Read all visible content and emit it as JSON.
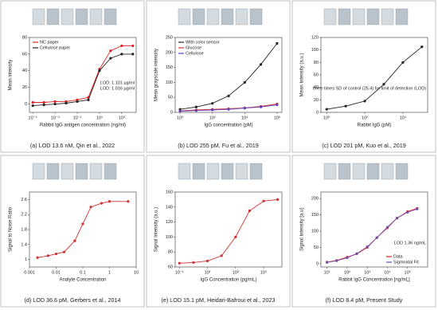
{
  "chart_data": [
    {
      "type": "line",
      "caption": "(a) LOD 13.6 nM, Qin et al., 2022",
      "xlabel": "Rabbit IgG antigen concentration (ng/ml)",
      "ylabel": "Mean intensity",
      "log_x": true,
      "xlim": [
        5e-06,
        20000
      ],
      "ylim": [
        -10,
        80
      ],
      "xticks": [
        {
          "value": 1e-05,
          "label": "10⁻⁵"
        },
        {
          "value": 0.001,
          "label": "10⁻³"
        },
        {
          "value": 0.1,
          "label": "10⁻¹"
        },
        {
          "value": 10,
          "label": "10¹"
        },
        {
          "value": 1000,
          "label": "10³"
        }
      ],
      "yticks": [
        0,
        20,
        40,
        60,
        80
      ],
      "legend": "upper left",
      "x": [
        1e-05,
        0.0001,
        0.001,
        0.01,
        0.1,
        1,
        10,
        100,
        1000,
        10000
      ],
      "series": [
        {
          "name": "NC paper",
          "color": "#e02020",
          "values": [
            2,
            2,
            3,
            3,
            5,
            8,
            42,
            64,
            70,
            70
          ]
        },
        {
          "name": "Cellulose paper",
          "color": "#222222",
          "values": [
            -2,
            -1,
            0,
            1,
            3,
            5,
            40,
            55,
            60,
            60
          ]
        }
      ],
      "annotations": [
        "LOD: 1.016 μg/ml",
        "LOD: 1.101 μg/ml"
      ]
    },
    {
      "type": "line",
      "caption": "(b) LOD 255 pM, Fu et al., 2019",
      "xlabel": "IgG concentration (pM)",
      "ylabel": "Mean grayscale intensity",
      "log_x": true,
      "xlim": [
        0.5,
        2000000
      ],
      "ylim": [
        0,
        250
      ],
      "xticks": [
        {
          "value": 1,
          "label": "10⁰"
        },
        {
          "value": 100,
          "label": "10²"
        },
        {
          "value": 10000,
          "label": "10⁴"
        },
        {
          "value": 1000000,
          "label": "10⁶"
        }
      ],
      "yticks": [
        0,
        50,
        100,
        150,
        200,
        250
      ],
      "legend": "upper left",
      "x": [
        1,
        10,
        100,
        1000,
        10000,
        100000,
        1000000
      ],
      "series": [
        {
          "name": "With color sensor",
          "color": "#222222",
          "values": [
            10,
            18,
            30,
            55,
            100,
            160,
            230
          ]
        },
        {
          "name": "Glucose",
          "color": "#d03030",
          "values": [
            5,
            8,
            10,
            12,
            15,
            20,
            28
          ]
        },
        {
          "name": "Cellulose",
          "color": "#6040c0",
          "values": [
            4,
            6,
            8,
            10,
            14,
            18,
            25
          ]
        }
      ],
      "annotations": []
    },
    {
      "type": "line",
      "caption": "(c) LOD 201 pM, Kuo et al., 2019",
      "xlabel": "Rabbit IgG (pM)",
      "ylabel": "Mean Intensity (a.u.)",
      "log_x": true,
      "xlim": [
        0.5,
        200000
      ],
      "ylim": [
        0,
        120
      ],
      "xticks": [
        {
          "value": 1,
          "label": "10⁰"
        },
        {
          "value": 100,
          "label": "10²"
        },
        {
          "value": 10000,
          "label": "10⁴"
        }
      ],
      "yticks": [
        0,
        20,
        40,
        60,
        80,
        100,
        120
      ],
      "legend": "upper left",
      "x": [
        1,
        10,
        100,
        1000,
        10000,
        100000
      ],
      "series": [
        {
          "color": "#222222",
          "values": [
            5,
            10,
            18,
            45,
            80,
            105
          ]
        }
      ],
      "annotations": [
        "three times SD of control (25.4) for limit of detection (LOD)"
      ]
    },
    {
      "type": "line",
      "caption": "(d) LOD 36.6 pM, Gerbers et al., 2014",
      "xlabel": "Analyte Concentration",
      "ylabel": "Signal to Noise Ratio",
      "log_x": true,
      "xlim": [
        0.001,
        10
      ],
      "ylim": [
        0.8,
        2.8
      ],
      "xticks": [
        0.001,
        0.01,
        0.1,
        1,
        10
      ],
      "yticks": [
        1,
        1.4,
        1.8,
        2.2,
        2.6
      ],
      "legend": "upper left",
      "x": [
        0.002,
        0.005,
        0.01,
        0.02,
        0.05,
        0.1,
        0.2,
        0.5,
        1,
        5
      ],
      "series": [
        {
          "color": "#d03030",
          "values": [
            1.05,
            1.1,
            1.15,
            1.2,
            1.5,
            1.95,
            2.4,
            2.5,
            2.55,
            2.55
          ]
        }
      ],
      "annotations": []
    },
    {
      "type": "line",
      "caption": "(e) LOD 15.1 pM, Heidari-Bafroui et al., 2023",
      "xlabel": "IgG Concentration (pg/mL)",
      "ylabel": "Signal Intensity (a.u.)",
      "log_x": true,
      "xlim": [
        0.05,
        2000000
      ],
      "ylim": [
        60,
        160
      ],
      "xticks": [
        {
          "value": 0.1,
          "label": "10⁻¹"
        },
        {
          "value": 10,
          "label": "10¹"
        },
        {
          "value": 1000,
          "label": "10³"
        },
        {
          "value": 100000,
          "label": "10⁵"
        }
      ],
      "yticks": [
        60,
        80,
        100,
        120,
        140,
        160
      ],
      "legend": "upper left",
      "x": [
        0.1,
        1,
        10,
        100,
        1000,
        10000,
        100000,
        1000000
      ],
      "series": [
        {
          "color": "#d03030",
          "values": [
            65,
            66,
            68,
            75,
            100,
            135,
            148,
            150
          ]
        }
      ],
      "annotations": []
    },
    {
      "type": "line",
      "caption": "(f) LOD 8.4 pM, Present Study",
      "xlabel": "Rabbit IgG Concentration [ng/mL]",
      "ylabel": "Signal Intensity [a.u]",
      "log_x": true,
      "xlim": [
        5,
        1000000
      ],
      "ylim": [
        -10,
        220
      ],
      "xticks": [
        {
          "value": 10,
          "label": "10¹"
        },
        {
          "value": 100,
          "label": "10²"
        },
        {
          "value": 1000,
          "label": "10³"
        },
        {
          "value": 10000,
          "label": "10⁴"
        },
        {
          "value": 100000,
          "label": "10⁵"
        }
      ],
      "yticks": [
        0,
        50,
        100,
        150,
        200
      ],
      "legend": "lower right",
      "x": [
        10,
        30,
        100,
        300,
        1000,
        3000,
        10000,
        30000,
        100000,
        300000
      ],
      "series": [
        {
          "name": "Data",
          "color": "#e02020",
          "values": [
            5,
            10,
            20,
            30,
            50,
            80,
            110,
            140,
            160,
            170
          ]
        },
        {
          "name": "Sigmoidal Fit",
          "color": "#7050b0",
          "values": [
            4,
            9,
            18,
            31,
            52,
            80,
            112,
            140,
            158,
            168
          ]
        }
      ],
      "annotations": [
        "LOD  1.36 ng/mL"
      ]
    }
  ]
}
